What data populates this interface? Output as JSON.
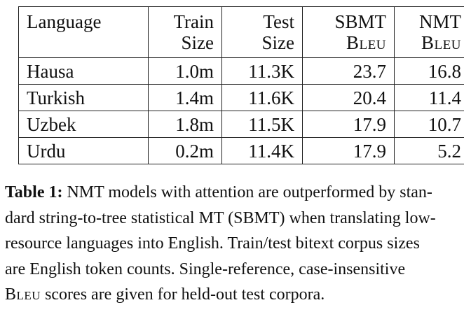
{
  "table": {
    "headers": [
      {
        "line1": "Language",
        "line2": ""
      },
      {
        "line1": "Train",
        "line2": "Size"
      },
      {
        "line1": "Test",
        "line2": "Size"
      },
      {
        "line1": "SBMT",
        "line2": "Bleu"
      },
      {
        "line1": "NMT",
        "line2": "Bleu"
      }
    ],
    "rows": [
      [
        "Hausa",
        "1.0m",
        "11.3K",
        "23.7",
        "16.8"
      ],
      [
        "Turkish",
        "1.4m",
        "11.6K",
        "20.4",
        "11.4"
      ],
      [
        "Uzbek",
        "1.8m",
        "11.5K",
        "17.9",
        "10.7"
      ],
      [
        "Urdu",
        "0.2m",
        "11.4K",
        "17.9",
        "5.2"
      ]
    ]
  },
  "caption": {
    "label": "Table 1:",
    "line1": "NMT models with attention are outperformed by stan-",
    "line2": "dard string-to-tree statistical MT (SBMT) when translating low-",
    "line3": "resource languages into English.  Train/test bitext corpus sizes",
    "line4": "are English token counts.  Single-reference, case-insensitive",
    "bleu_word": "Bleu",
    "line5_rest": " scores are given for held-out test corpora."
  }
}
